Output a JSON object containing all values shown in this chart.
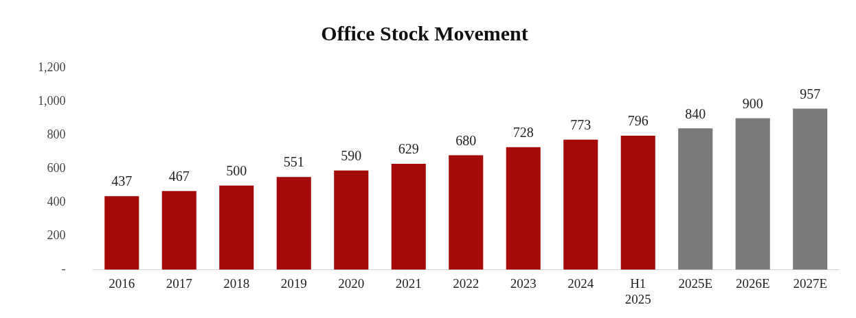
{
  "chart_data": {
    "type": "bar",
    "title": "Office Stock Movement",
    "categories": [
      "2016",
      "2017",
      "2018",
      "2019",
      "2020",
      "2021",
      "2022",
      "2023",
      "2024",
      "H1 2025",
      "2025E",
      "2026E",
      "2027E"
    ],
    "values": [
      437,
      467,
      500,
      551,
      590,
      629,
      680,
      728,
      773,
      796,
      840,
      900,
      957
    ],
    "colors": [
      "#a50a0a",
      "#a50a0a",
      "#a50a0a",
      "#a50a0a",
      "#a50a0a",
      "#a50a0a",
      "#a50a0a",
      "#a50a0a",
      "#a50a0a",
      "#a50a0a",
      "#7a7a7a",
      "#7a7a7a",
      "#7a7a7a"
    ],
    "ylim": [
      0,
      1200
    ],
    "yticks": [
      {
        "value": 0,
        "label": "-"
      },
      {
        "value": 200,
        "label": "200"
      },
      {
        "value": 400,
        "label": "400"
      },
      {
        "value": 600,
        "label": "600"
      },
      {
        "value": 800,
        "label": "800"
      },
      {
        "value": 1000,
        "label": "1,000"
      },
      {
        "value": 1200,
        "label": "1,200"
      }
    ],
    "grid": false,
    "legend": false,
    "data_labels": true
  }
}
